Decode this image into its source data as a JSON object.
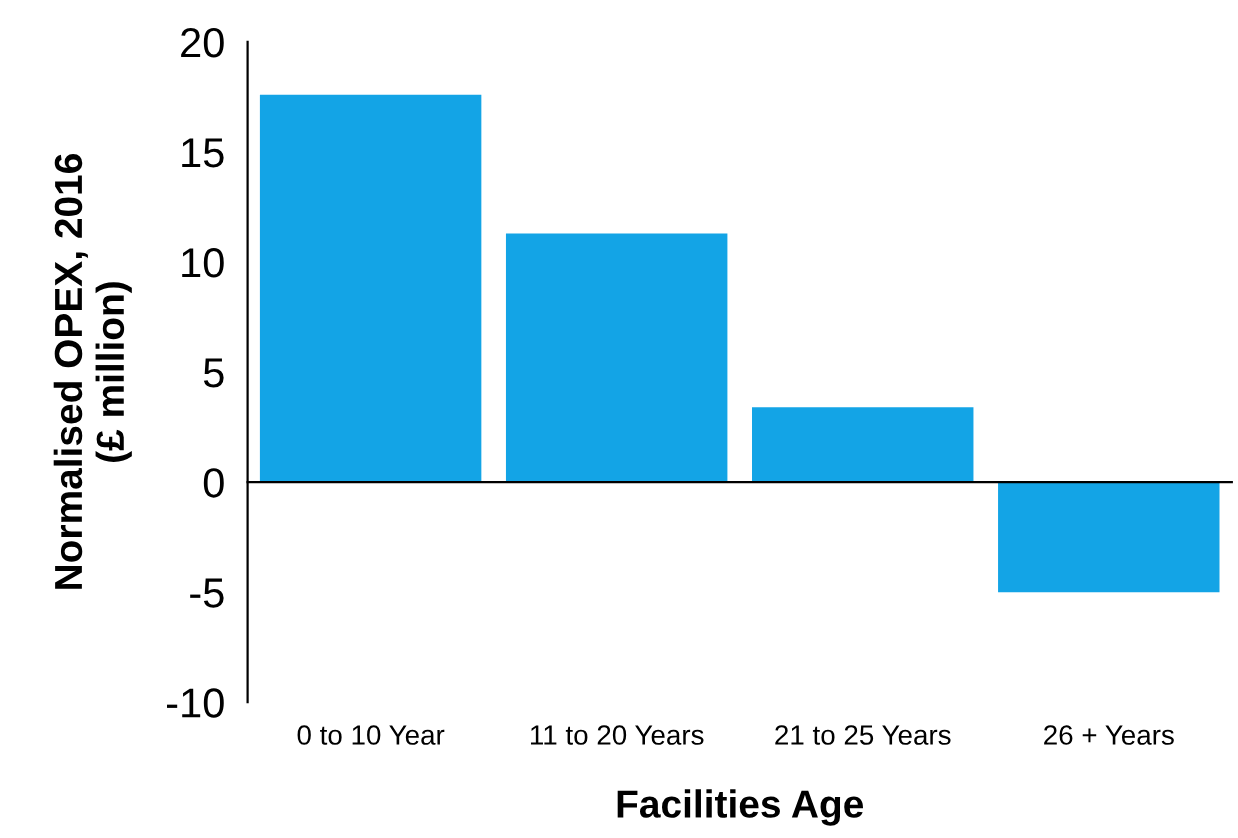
{
  "chart_data": {
    "type": "bar",
    "xlabel": "Facilities Age",
    "ylabel": "Normalised OPEX, 2016\n(£ million)",
    "categories": [
      "0 to 10 Year",
      "11 to 20 Years",
      "21 to 25 Years",
      "26 + Years"
    ],
    "values": [
      17.6,
      11.3,
      3.4,
      -5.0
    ],
    "color": "#13a4e6",
    "ylim": [
      -10,
      20
    ],
    "yticks": [
      -10,
      -5,
      0,
      5,
      10,
      15,
      20
    ]
  }
}
